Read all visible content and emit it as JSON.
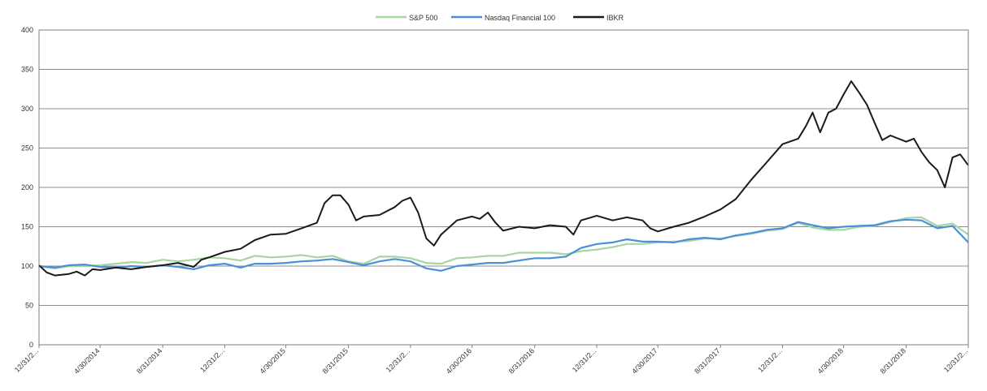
{
  "chart_data": {
    "type": "line",
    "title": "",
    "xlabel": "",
    "ylabel": "",
    "ylim": [
      0,
      400
    ],
    "yticks": [
      0,
      50,
      100,
      150,
      200,
      250,
      300,
      350,
      400
    ],
    "xlim": [
      "2013-12-31",
      "2018-12-31"
    ],
    "x_tick_labels": [
      "12/31/2...",
      "4/30/2014",
      "8/31/2014",
      "12/31/2...",
      "4/30/2015",
      "8/31/2015",
      "12/31/2...",
      "4/30/2016",
      "8/31/2016",
      "12/31/2...",
      "4/30/2017",
      "8/31/2017",
      "12/31/2...",
      "4/30/2018",
      "8/31/2018",
      "12/31/2..."
    ],
    "x_tick_dates": [
      "2013-12-31",
      "2014-04-30",
      "2014-08-31",
      "2014-12-31",
      "2015-04-30",
      "2015-08-31",
      "2015-12-31",
      "2016-04-30",
      "2016-08-31",
      "2016-12-31",
      "2017-04-30",
      "2017-08-31",
      "2017-12-31",
      "2018-04-30",
      "2018-08-31",
      "2018-12-31"
    ],
    "grid": "horizontal",
    "legend_position": "top-center",
    "series": [
      {
        "name": "S&P 500",
        "color": "#a8d5a2",
        "points": [
          [
            "2013-12-31",
            100
          ],
          [
            "2014-01-31",
            97
          ],
          [
            "2014-02-28",
            100
          ],
          [
            "2014-03-31",
            100
          ],
          [
            "2014-04-30",
            101
          ],
          [
            "2014-05-31",
            103
          ],
          [
            "2014-06-30",
            105
          ],
          [
            "2014-07-31",
            104
          ],
          [
            "2014-08-31",
            108
          ],
          [
            "2014-09-30",
            106
          ],
          [
            "2014-10-31",
            108
          ],
          [
            "2014-11-30",
            111
          ],
          [
            "2014-12-31",
            110
          ],
          [
            "2015-01-31",
            107
          ],
          [
            "2015-02-28",
            113
          ],
          [
            "2015-03-31",
            111
          ],
          [
            "2015-04-30",
            112
          ],
          [
            "2015-05-31",
            114
          ],
          [
            "2015-06-30",
            111
          ],
          [
            "2015-07-31",
            113
          ],
          [
            "2015-08-31",
            106
          ],
          [
            "2015-09-30",
            103
          ],
          [
            "2015-10-31",
            112
          ],
          [
            "2015-11-30",
            112
          ],
          [
            "2015-12-31",
            110
          ],
          [
            "2016-01-31",
            104
          ],
          [
            "2016-02-29",
            103
          ],
          [
            "2016-03-31",
            110
          ],
          [
            "2016-04-30",
            111
          ],
          [
            "2016-05-31",
            113
          ],
          [
            "2016-06-30",
            113
          ],
          [
            "2016-07-31",
            117
          ],
          [
            "2016-08-31",
            117
          ],
          [
            "2016-09-30",
            117
          ],
          [
            "2016-10-31",
            115
          ],
          [
            "2016-11-30",
            119
          ],
          [
            "2016-12-31",
            121
          ],
          [
            "2017-01-31",
            124
          ],
          [
            "2017-02-28",
            128
          ],
          [
            "2017-03-31",
            128
          ],
          [
            "2017-04-30",
            130
          ],
          [
            "2017-05-31",
            131
          ],
          [
            "2017-06-30",
            132
          ],
          [
            "2017-07-31",
            135
          ],
          [
            "2017-08-31",
            135
          ],
          [
            "2017-09-30",
            138
          ],
          [
            "2017-10-31",
            141
          ],
          [
            "2017-11-30",
            145
          ],
          [
            "2017-12-31",
            147
          ],
          [
            "2018-01-31",
            155
          ],
          [
            "2018-02-28",
            149
          ],
          [
            "2018-03-31",
            146
          ],
          [
            "2018-04-30",
            146
          ],
          [
            "2018-05-31",
            150
          ],
          [
            "2018-06-30",
            151
          ],
          [
            "2018-07-31",
            156
          ],
          [
            "2018-08-31",
            161
          ],
          [
            "2018-09-30",
            162
          ],
          [
            "2018-10-31",
            151
          ],
          [
            "2018-11-30",
            154
          ],
          [
            "2018-12-31",
            140
          ]
        ]
      },
      {
        "name": "Nasdaq Financial 100",
        "color": "#4a90d9",
        "points": [
          [
            "2013-12-31",
            100
          ],
          [
            "2014-01-31",
            98
          ],
          [
            "2014-02-28",
            101
          ],
          [
            "2014-03-31",
            102
          ],
          [
            "2014-04-30",
            99
          ],
          [
            "2014-05-31",
            98
          ],
          [
            "2014-06-30",
            100
          ],
          [
            "2014-07-31",
            99
          ],
          [
            "2014-08-31",
            101
          ],
          [
            "2014-09-30",
            99
          ],
          [
            "2014-10-31",
            96
          ],
          [
            "2014-11-30",
            101
          ],
          [
            "2014-12-31",
            103
          ],
          [
            "2015-01-31",
            98
          ],
          [
            "2015-02-28",
            103
          ],
          [
            "2015-03-31",
            103
          ],
          [
            "2015-04-30",
            104
          ],
          [
            "2015-05-31",
            106
          ],
          [
            "2015-06-30",
            107
          ],
          [
            "2015-07-31",
            109
          ],
          [
            "2015-08-31",
            105
          ],
          [
            "2015-09-30",
            101
          ],
          [
            "2015-10-31",
            106
          ],
          [
            "2015-11-30",
            109
          ],
          [
            "2015-12-31",
            106
          ],
          [
            "2016-01-31",
            97
          ],
          [
            "2016-02-29",
            94
          ],
          [
            "2016-03-31",
            100
          ],
          [
            "2016-04-30",
            102
          ],
          [
            "2016-05-31",
            104
          ],
          [
            "2016-06-30",
            104
          ],
          [
            "2016-07-31",
            107
          ],
          [
            "2016-08-31",
            110
          ],
          [
            "2016-09-30",
            110
          ],
          [
            "2016-10-31",
            112
          ],
          [
            "2016-11-30",
            123
          ],
          [
            "2016-12-31",
            128
          ],
          [
            "2017-01-31",
            130
          ],
          [
            "2017-02-28",
            134
          ],
          [
            "2017-03-31",
            131
          ],
          [
            "2017-04-30",
            131
          ],
          [
            "2017-05-31",
            130
          ],
          [
            "2017-06-30",
            134
          ],
          [
            "2017-07-31",
            136
          ],
          [
            "2017-08-31",
            134
          ],
          [
            "2017-09-30",
            139
          ],
          [
            "2017-10-31",
            142
          ],
          [
            "2017-11-30",
            146
          ],
          [
            "2017-12-31",
            148
          ],
          [
            "2018-01-31",
            156
          ],
          [
            "2018-02-28",
            152
          ],
          [
            "2018-03-31",
            148
          ],
          [
            "2018-04-30",
            150
          ],
          [
            "2018-05-31",
            151
          ],
          [
            "2018-06-30",
            152
          ],
          [
            "2018-07-31",
            157
          ],
          [
            "2018-08-31",
            159
          ],
          [
            "2018-09-30",
            158
          ],
          [
            "2018-10-31",
            148
          ],
          [
            "2018-11-30",
            151
          ],
          [
            "2018-12-31",
            130
          ]
        ]
      },
      {
        "name": "IBKR",
        "color": "#1a1a1a",
        "points": [
          [
            "2013-12-31",
            101
          ],
          [
            "2014-01-15",
            92
          ],
          [
            "2014-01-31",
            88
          ],
          [
            "2014-02-28",
            90
          ],
          [
            "2014-03-15",
            93
          ],
          [
            "2014-03-31",
            88
          ],
          [
            "2014-04-15",
            96
          ],
          [
            "2014-04-30",
            95
          ],
          [
            "2014-05-31",
            98
          ],
          [
            "2014-06-30",
            96
          ],
          [
            "2014-07-31",
            99
          ],
          [
            "2014-08-31",
            101
          ],
          [
            "2014-09-30",
            104
          ],
          [
            "2014-10-31",
            99
          ],
          [
            "2014-11-15",
            108
          ],
          [
            "2014-11-30",
            111
          ],
          [
            "2014-12-31",
            118
          ],
          [
            "2015-01-31",
            122
          ],
          [
            "2015-02-28",
            133
          ],
          [
            "2015-03-31",
            140
          ],
          [
            "2015-04-30",
            141
          ],
          [
            "2015-05-31",
            148
          ],
          [
            "2015-06-30",
            155
          ],
          [
            "2015-07-15",
            180
          ],
          [
            "2015-07-31",
            190
          ],
          [
            "2015-08-15",
            190
          ],
          [
            "2015-08-31",
            178
          ],
          [
            "2015-09-15",
            158
          ],
          [
            "2015-09-30",
            163
          ],
          [
            "2015-10-31",
            165
          ],
          [
            "2015-11-30",
            175
          ],
          [
            "2015-12-15",
            183
          ],
          [
            "2015-12-31",
            187
          ],
          [
            "2016-01-15",
            168
          ],
          [
            "2016-01-31",
            135
          ],
          [
            "2016-02-15",
            126
          ],
          [
            "2016-02-29",
            140
          ],
          [
            "2016-03-31",
            158
          ],
          [
            "2016-04-30",
            163
          ],
          [
            "2016-05-15",
            160
          ],
          [
            "2016-05-31",
            168
          ],
          [
            "2016-06-15",
            155
          ],
          [
            "2016-06-30",
            145
          ],
          [
            "2016-07-31",
            150
          ],
          [
            "2016-08-31",
            148
          ],
          [
            "2016-09-30",
            152
          ],
          [
            "2016-10-31",
            150
          ],
          [
            "2016-11-15",
            140
          ],
          [
            "2016-11-30",
            158
          ],
          [
            "2016-12-31",
            164
          ],
          [
            "2017-01-31",
            158
          ],
          [
            "2017-02-28",
            162
          ],
          [
            "2017-03-31",
            158
          ],
          [
            "2017-04-15",
            148
          ],
          [
            "2017-04-30",
            144
          ],
          [
            "2017-05-31",
            150
          ],
          [
            "2017-06-30",
            155
          ],
          [
            "2017-07-31",
            163
          ],
          [
            "2017-08-31",
            172
          ],
          [
            "2017-09-30",
            185
          ],
          [
            "2017-10-31",
            210
          ],
          [
            "2017-11-30",
            232
          ],
          [
            "2017-12-31",
            255
          ],
          [
            "2018-01-31",
            262
          ],
          [
            "2018-02-15",
            278
          ],
          [
            "2018-02-28",
            295
          ],
          [
            "2018-03-15",
            270
          ],
          [
            "2018-03-31",
            295
          ],
          [
            "2018-04-15",
            300
          ],
          [
            "2018-04-30",
            318
          ],
          [
            "2018-05-15",
            335
          ],
          [
            "2018-05-31",
            320
          ],
          [
            "2018-06-15",
            305
          ],
          [
            "2018-06-30",
            282
          ],
          [
            "2018-07-15",
            260
          ],
          [
            "2018-07-31",
            266
          ],
          [
            "2018-08-31",
            258
          ],
          [
            "2018-09-15",
            262
          ],
          [
            "2018-09-30",
            245
          ],
          [
            "2018-10-15",
            232
          ],
          [
            "2018-10-31",
            222
          ],
          [
            "2018-11-15",
            200
          ],
          [
            "2018-11-30",
            238
          ],
          [
            "2018-12-15",
            242
          ],
          [
            "2018-12-31",
            228
          ]
        ]
      }
    ]
  }
}
